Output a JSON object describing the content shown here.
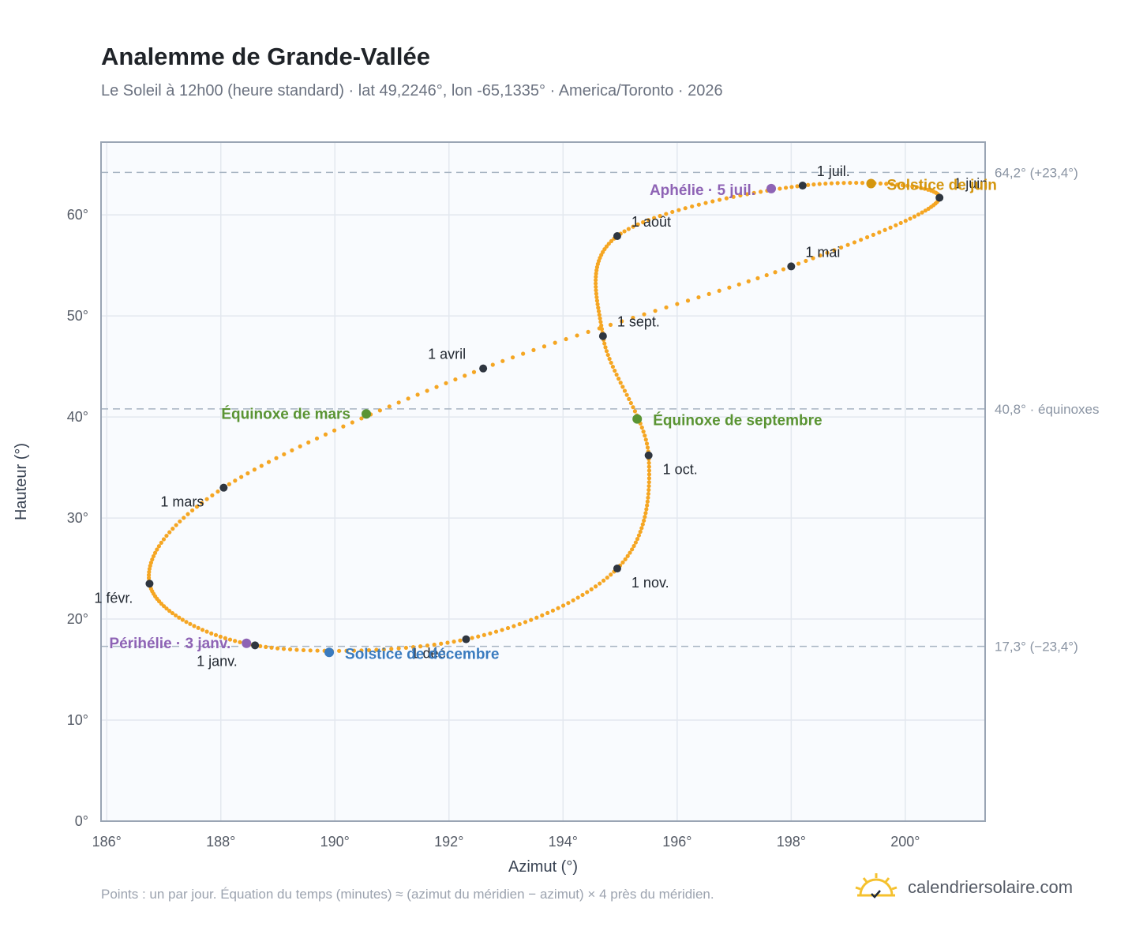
{
  "chart_data": {
    "type": "scatter",
    "title": "Analemme de Grande-Vallée",
    "subtitle": "Le Soleil à 12h00 (heure standard) · lat 49,2246°, lon -65,1335° · America/Toronto · 2026",
    "xlabel": "Azimut (°)",
    "ylabel": "Hauteur (°)",
    "xlim": [
      185.9,
      201.4
    ],
    "ylim": [
      0,
      67.2
    ],
    "xticks": [
      186,
      188,
      190,
      192,
      194,
      196,
      198,
      200
    ],
    "xtick_labels": [
      "186°",
      "188°",
      "190°",
      "192°",
      "194°",
      "196°",
      "198°",
      "200°"
    ],
    "yticks": [
      0,
      10,
      20,
      30,
      40,
      50,
      60
    ],
    "ytick_labels": [
      "0°",
      "10°",
      "20°",
      "30°",
      "40°",
      "50°",
      "60°"
    ],
    "grid": true,
    "series_color": "#f5a623",
    "month_points": [
      {
        "label": "1 janv.",
        "x": 188.6,
        "y": 17.4
      },
      {
        "label": "1 févr.",
        "x": 186.75,
        "y": 23.5
      },
      {
        "label": "1 mars",
        "x": 188.05,
        "y": 33.0
      },
      {
        "label": "1 avril",
        "x": 192.6,
        "y": 44.8
      },
      {
        "label": "1 mai",
        "x": 198.0,
        "y": 54.9
      },
      {
        "label": "1 juin",
        "x": 200.6,
        "y": 61.7
      },
      {
        "label": "1 juil.",
        "x": 198.2,
        "y": 62.9
      },
      {
        "label": "1 août",
        "x": 194.95,
        "y": 57.9
      },
      {
        "label": "1 sept.",
        "x": 194.7,
        "y": 48.0
      },
      {
        "label": "1 oct.",
        "x": 195.5,
        "y": 36.2
      },
      {
        "label": "1 nov.",
        "x": 194.95,
        "y": 25.0
      },
      {
        "label": "1 déc.",
        "x": 192.3,
        "y": 18.0
      }
    ],
    "events": [
      {
        "label": "Périhélie · 3 janv.",
        "x": 188.45,
        "y": 17.6,
        "color": "#8e63b5"
      },
      {
        "label": "Équinoxe de mars",
        "x": 190.55,
        "y": 40.3,
        "color": "#5a9433"
      },
      {
        "label": "Solstice de juin",
        "x": 199.4,
        "y": 63.1,
        "color": "#d4960e"
      },
      {
        "label": "Aphélie · 5 juil.",
        "x": 197.65,
        "y": 62.6,
        "color": "#8e63b5"
      },
      {
        "label": "Équinoxe de septembre",
        "x": 195.3,
        "y": 39.8,
        "color": "#5a9433"
      },
      {
        "label": "Solstice de décembre",
        "x": 189.9,
        "y": 16.7,
        "color": "#3a7bbf"
      }
    ],
    "reference_lines": [
      {
        "label": "64,2° (+23,4°)",
        "y": 64.2
      },
      {
        "label": "40,8° · équinoxes",
        "y": 40.8
      },
      {
        "label": "17,3° (−23,4°)",
        "y": 17.3
      }
    ]
  },
  "footnote": "Points : un par jour. Équation du temps (minutes) ≈ (azimut du méridien − azimut) × 4 près du méridien.",
  "brand": {
    "name": "calendriersolaire.com",
    "icon": "sun-check-icon",
    "color": "#f5c12e"
  }
}
